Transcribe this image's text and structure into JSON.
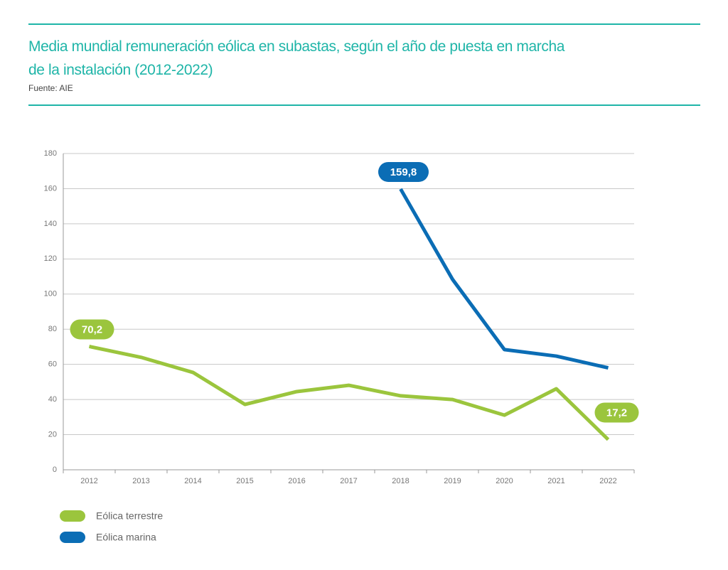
{
  "chart_data": {
    "type": "line",
    "title": [
      "Media mundial remuneración eólica en subastas, según el año de puesta en marcha",
      "de la instalación (2012-2022)"
    ],
    "subtitle": "Fuente: AIE",
    "categories": [
      "2012",
      "2013",
      "2014",
      "2015",
      "2016",
      "2017",
      "2018",
      "2019",
      "2020",
      "2021",
      "2022"
    ],
    "series": [
      {
        "name": "Eólica terrestre",
        "color": "#9bc53d",
        "values": [
          70.2,
          64,
          55.4,
          37.2,
          44.5,
          48.1,
          42.1,
          40,
          31.1,
          46.1,
          17.2
        ],
        "value_labels": [
          "70,2",
          null,
          null,
          null,
          null,
          null,
          null,
          null,
          null,
          null,
          "17,2"
        ]
      },
      {
        "name": "Eólica marina",
        "color": "#0b6db5",
        "values": [
          null,
          null,
          null,
          null,
          null,
          null,
          159.8,
          108.4,
          68.4,
          64.7,
          58
        ],
        "value_labels": [
          null,
          null,
          null,
          null,
          null,
          null,
          "159,8",
          null,
          null,
          null,
          null
        ]
      }
    ],
    "ylim": [
      0,
      180
    ],
    "yticks": [
      0,
      20,
      40,
      60,
      80,
      100,
      120,
      140,
      160,
      180
    ],
    "grid": true
  }
}
